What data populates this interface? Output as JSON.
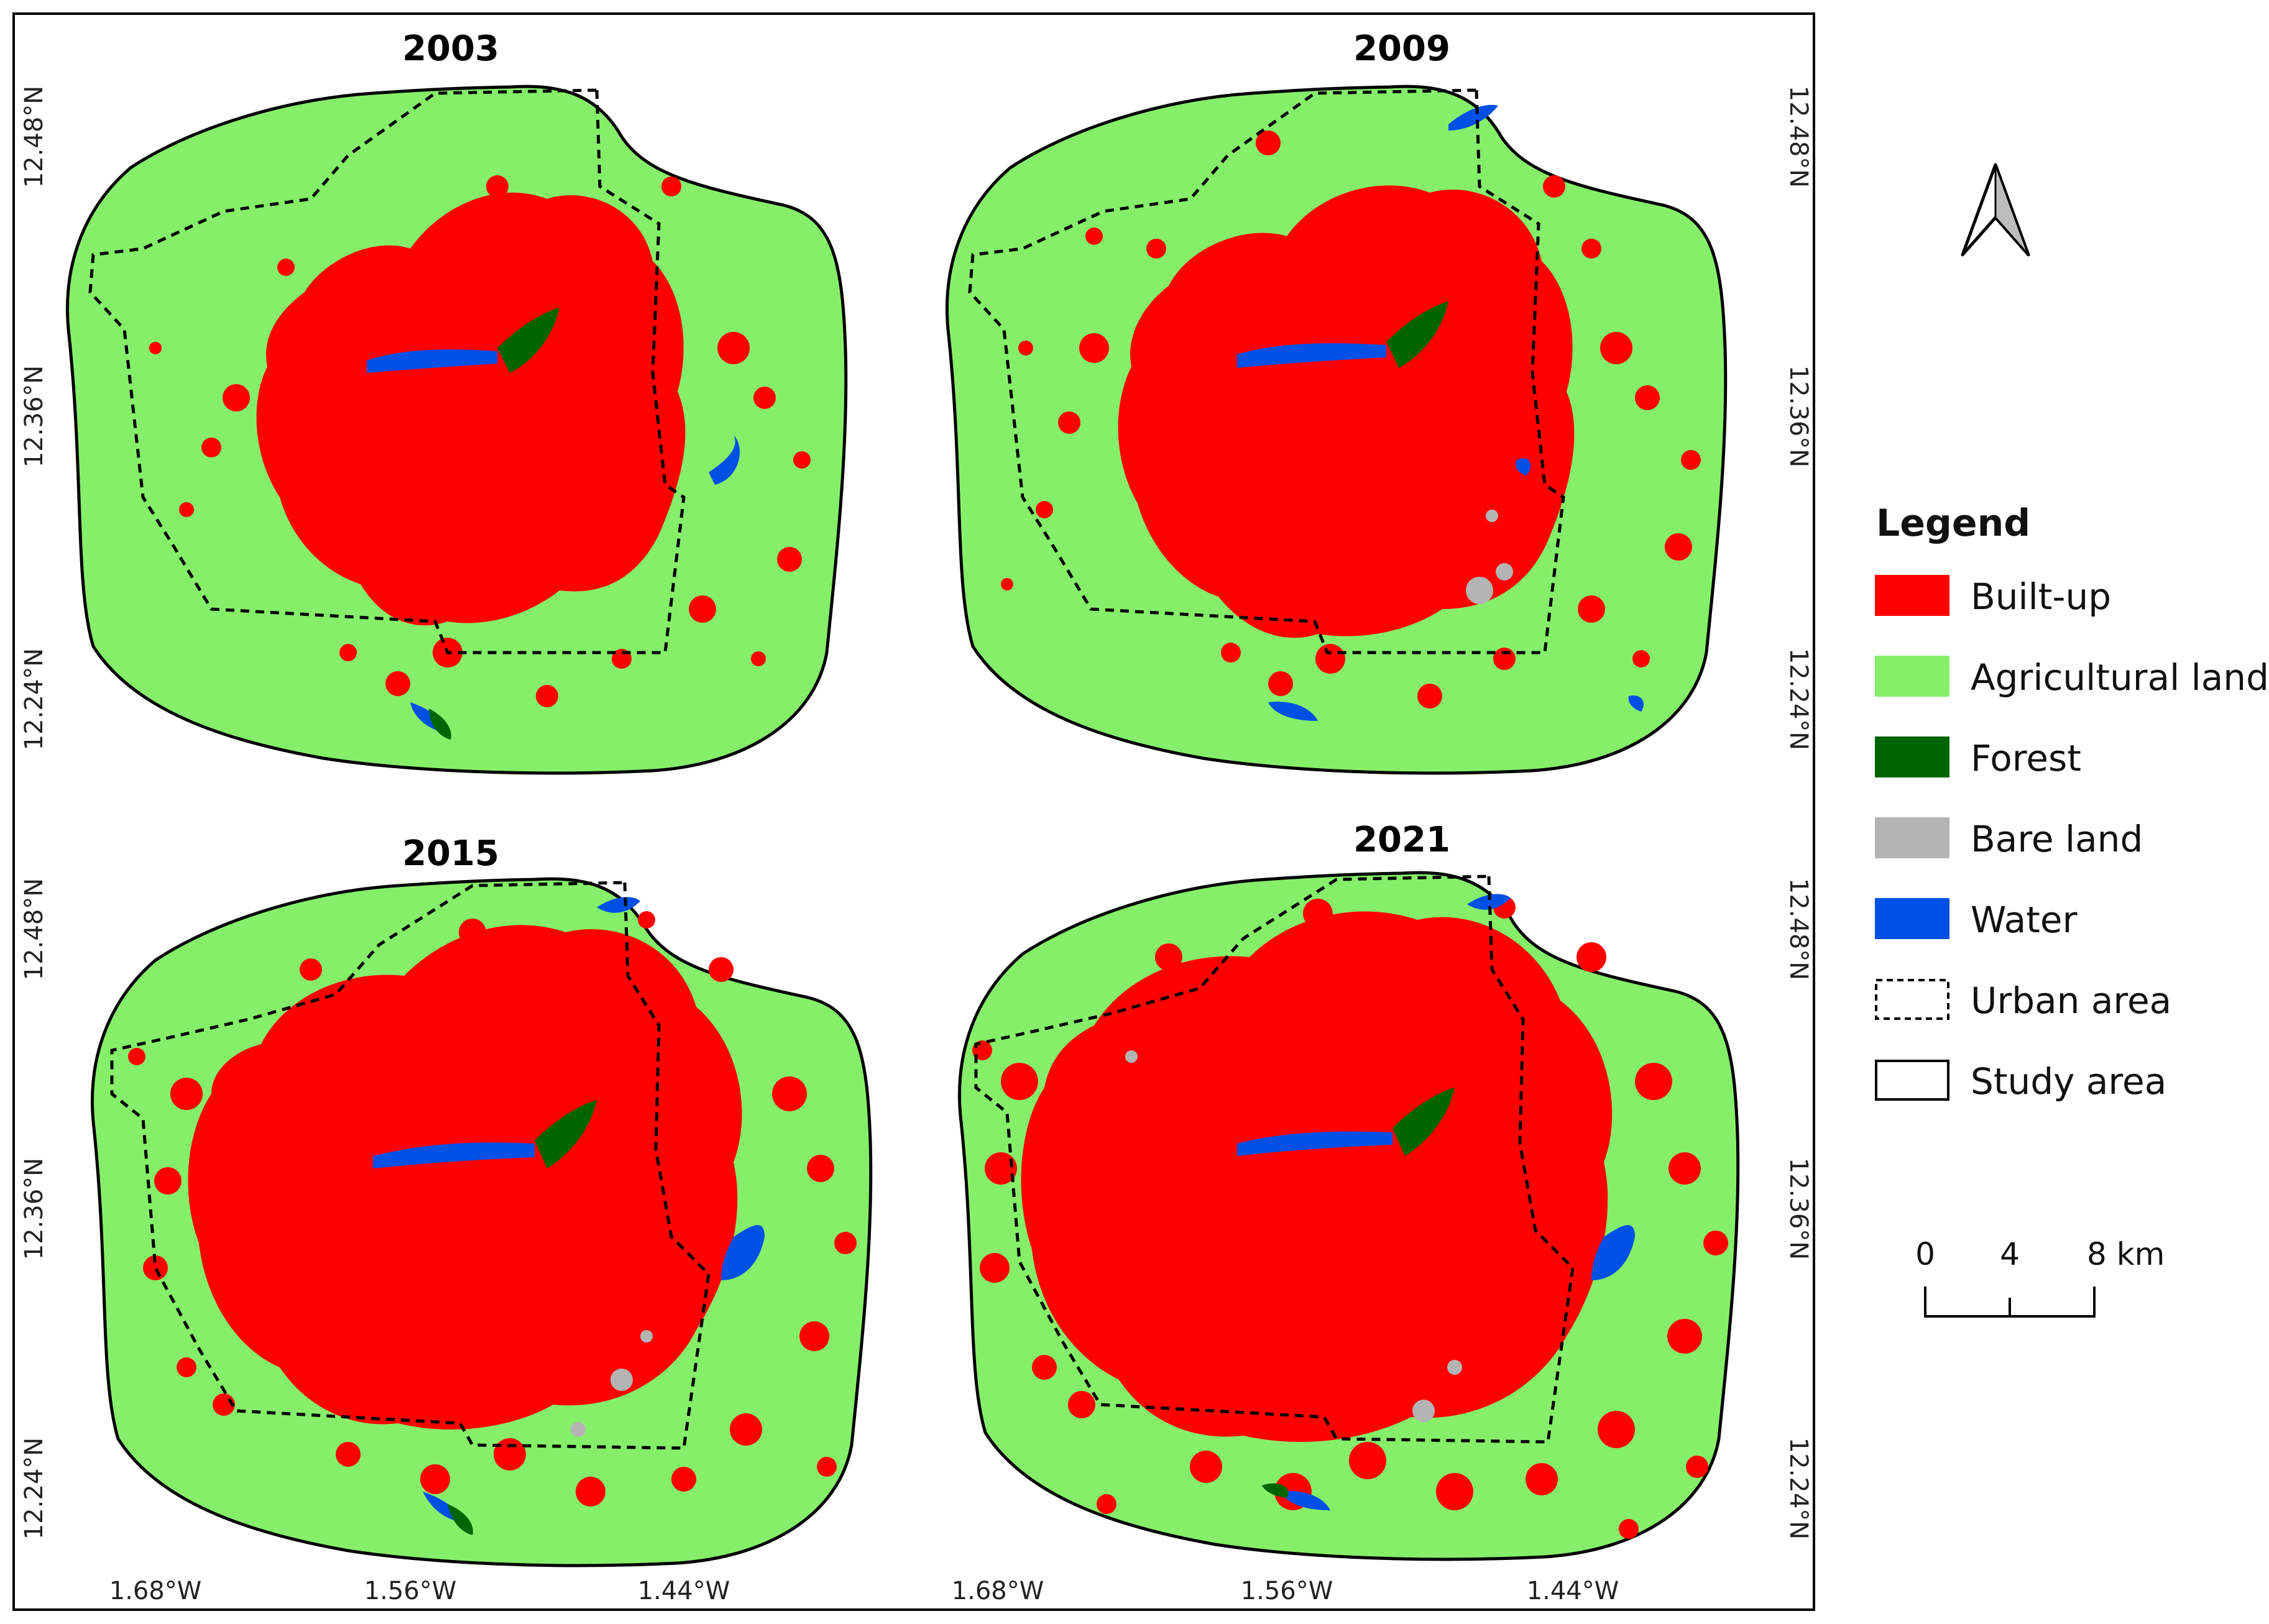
{
  "panels": [
    {
      "year": "2003",
      "urban": "urban_a",
      "blobs": "b2003",
      "agblobs": "g2003",
      "water": "w2003",
      "forest": "f2003",
      "bare": "x2003"
    },
    {
      "year": "2009",
      "urban": "urban_b",
      "blobs": "b2009",
      "agblobs": "g2009",
      "water": "w2009",
      "forest": "f2009",
      "bare": "x2009"
    },
    {
      "year": "2015",
      "urban": "urban_c",
      "blobs": "b2015",
      "agblobs": "g2015",
      "water": "w2015",
      "forest": "f2015",
      "bare": "x2015"
    },
    {
      "year": "2021",
      "urban": "urban_d",
      "blobs": "b2021",
      "agblobs": "g2021",
      "water": "w2021",
      "forest": "f2021",
      "bare": "x2021"
    }
  ],
  "axes": {
    "x_ticks_left": [
      "1.68°W",
      "1.56°W",
      "1.44°W"
    ],
    "x_ticks_right": [
      "1.68°W",
      "1.56°W",
      "1.44°W"
    ],
    "y_ticks_left_top": [
      "12.48°N",
      "12.36°N",
      "12.24°N"
    ],
    "y_ticks_left_bottom": [
      "12.48°N",
      "12.36°N",
      "12.24°N"
    ],
    "y_ticks_right_top": [
      "12.48°N",
      "12.36°N",
      "12.24°N"
    ],
    "y_ticks_right_bottom": [
      "12.48°N",
      "12.36°N",
      "12.24°N"
    ]
  },
  "legend": {
    "title": "Legend",
    "items": [
      {
        "label": "Built-up",
        "color": "#ff0000",
        "kind": "fill"
      },
      {
        "label": "Agricultural land",
        "color": "#85ef6a",
        "kind": "fill"
      },
      {
        "label": "Forest",
        "color": "#006400",
        "kind": "fill"
      },
      {
        "label": "Bare land",
        "color": "#b4b4b4",
        "kind": "fill"
      },
      {
        "label": "Water",
        "color": "#0050e6",
        "kind": "fill"
      },
      {
        "label": "Urban area",
        "color": "#000000",
        "kind": "dashed"
      },
      {
        "label": "Study area",
        "color": "#000000",
        "kind": "outline"
      }
    ]
  },
  "scalebar": {
    "labels": [
      "0",
      "4",
      "8 km"
    ]
  },
  "north_arrow": {
    "icon": "north-arrow-icon"
  },
  "colors": {
    "builtup": "#ff0000",
    "agriculture": "#85ef6a",
    "forest": "#006400",
    "bare": "#b4b4b4",
    "water": "#0050e6"
  }
}
